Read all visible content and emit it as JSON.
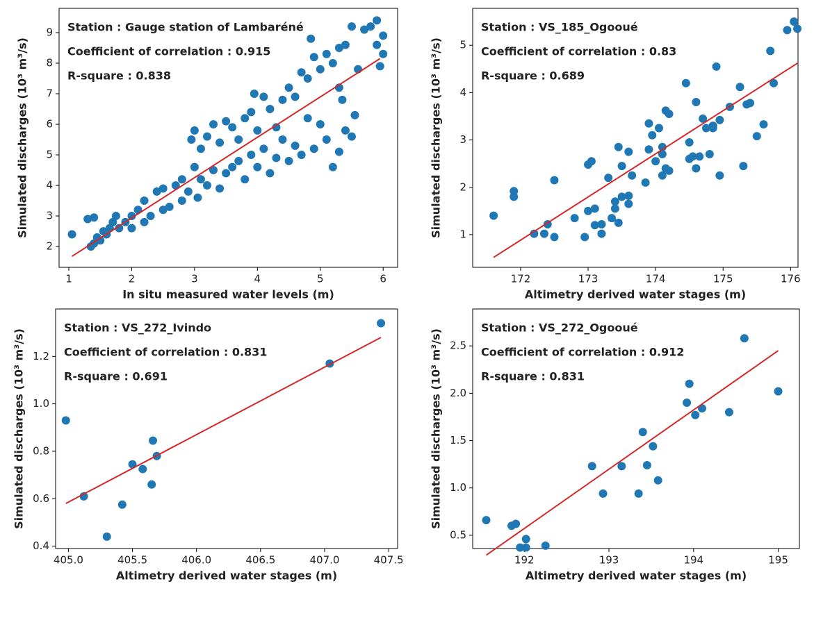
{
  "chart_data": [
    {
      "type": "scatter",
      "annotations": [
        "Station : Gauge station of Lambaréné",
        "Coefficient of correlation : 0.915",
        "R-square : 0.838"
      ],
      "xlabel": "In situ measured water levels (m)",
      "ylabel": "Simulated discharges (10³ m³/s)",
      "xlim": [
        0.845,
        6.23
      ],
      "ylim": [
        1.32,
        9.795
      ],
      "xticks": [
        1,
        2,
        3,
        4,
        5,
        6
      ],
      "yticks": [
        2,
        3,
        4,
        5,
        6,
        7,
        8,
        9
      ],
      "series": [
        {
          "color": "#1f77b4",
          "x": [
            1.05,
            1.3,
            1.4,
            1.35,
            1.4,
            1.45,
            1.5,
            1.55,
            1.6,
            1.65,
            1.7,
            1.75,
            1.8,
            1.9,
            2.0,
            2.0,
            2.1,
            2.2,
            2.2,
            2.3,
            2.4,
            2.5,
            2.5,
            2.6,
            2.7,
            2.8,
            2.8,
            2.9,
            2.95,
            3.0,
            3.0,
            3.05,
            3.1,
            3.1,
            3.2,
            3.2,
            3.3,
            3.3,
            3.4,
            3.4,
            3.5,
            3.5,
            3.6,
            3.6,
            3.7,
            3.7,
            3.8,
            3.8,
            3.9,
            3.9,
            3.95,
            4.0,
            4.0,
            4.1,
            4.1,
            4.2,
            4.2,
            4.3,
            4.3,
            4.4,
            4.4,
            4.5,
            4.5,
            4.6,
            4.6,
            4.7,
            4.7,
            4.8,
            4.8,
            4.85,
            4.9,
            4.9,
            5.0,
            5.0,
            5.1,
            5.1,
            5.2,
            5.2,
            5.3,
            5.3,
            5.4,
            5.4,
            5.5,
            5.5,
            5.55,
            5.6,
            5.7,
            5.8,
            5.9,
            5.9,
            6.0,
            6.0,
            5.95,
            5.35,
            5.3
          ],
          "values": [
            2.4,
            2.9,
            2.95,
            2.0,
            2.1,
            2.3,
            2.2,
            2.5,
            2.4,
            2.6,
            2.8,
            3.0,
            2.6,
            2.8,
            2.6,
            3.0,
            3.2,
            2.8,
            3.5,
            3.0,
            3.8,
            3.2,
            3.9,
            3.3,
            4.0,
            3.5,
            4.2,
            3.8,
            5.5,
            4.6,
            5.8,
            3.6,
            5.2,
            4.2,
            5.6,
            4.0,
            6.0,
            4.5,
            5.4,
            3.9,
            6.1,
            4.4,
            5.9,
            4.6,
            5.5,
            4.8,
            6.2,
            4.2,
            6.4,
            5.0,
            7.0,
            5.8,
            4.6,
            6.9,
            5.2,
            6.5,
            4.4,
            5.9,
            4.9,
            6.8,
            5.5,
            7.2,
            4.8,
            6.9,
            5.3,
            7.7,
            5.0,
            7.5,
            6.2,
            8.8,
            8.2,
            5.2,
            7.8,
            6.0,
            8.3,
            5.5,
            8.0,
            4.6,
            8.5,
            5.1,
            8.6,
            5.8,
            9.2,
            5.6,
            6.3,
            7.8,
            9.1,
            9.2,
            9.4,
            8.6,
            8.9,
            8.3,
            7.9,
            6.8,
            7.2
          ]
        }
      ],
      "fit_line": {
        "color": "#d62728",
        "x": [
          1.05,
          5.95
        ],
        "values": [
          1.68,
          8.15
        ]
      }
    },
    {
      "type": "scatter",
      "annotations": [
        "Station : VS_185_Ogooué",
        "Coefficient of correlation : 0.83",
        "R-square : 0.689"
      ],
      "xlabel": "Altimetry derived water stages (m)",
      "ylabel": "Simulated discharges (10³ m³/s)",
      "xlim": [
        171.29,
        176.11
      ],
      "ylim": [
        0.31,
        5.78
      ],
      "xticks": [
        172,
        173,
        174,
        175,
        176
      ],
      "yticks": [
        1,
        2,
        3,
        4,
        5
      ],
      "series": [
        {
          "color": "#1f77b4",
          "x": [
            171.6,
            171.9,
            171.9,
            172.2,
            172.35,
            172.4,
            172.5,
            172.5,
            172.8,
            172.95,
            173.0,
            173.0,
            173.05,
            173.1,
            173.1,
            173.2,
            173.2,
            173.3,
            173.35,
            173.4,
            173.4,
            173.45,
            173.45,
            173.5,
            173.5,
            173.6,
            173.6,
            173.6,
            173.65,
            173.85,
            173.9,
            173.9,
            173.95,
            174.0,
            174.05,
            174.1,
            174.1,
            174.1,
            174.15,
            174.15,
            174.2,
            174.2,
            174.45,
            174.5,
            174.5,
            174.55,
            174.6,
            174.6,
            174.65,
            174.7,
            174.75,
            174.8,
            174.85,
            174.85,
            174.9,
            174.95,
            174.95,
            175.1,
            175.25,
            175.3,
            175.35,
            175.4,
            175.5,
            175.6,
            175.7,
            175.75,
            175.95,
            176.05,
            176.1
          ],
          "values": [
            1.4,
            1.8,
            1.92,
            1.02,
            1.02,
            1.22,
            0.95,
            2.15,
            1.35,
            0.95,
            1.5,
            2.48,
            2.55,
            1.55,
            1.2,
            1.22,
            1.02,
            2.2,
            1.35,
            1.55,
            1.7,
            2.85,
            1.25,
            2.45,
            1.8,
            2.75,
            1.65,
            1.82,
            2.25,
            2.1,
            2.8,
            3.35,
            3.1,
            2.55,
            3.25,
            2.25,
            2.85,
            2.7,
            3.62,
            2.4,
            3.55,
            2.35,
            4.2,
            2.6,
            2.95,
            2.65,
            3.8,
            2.4,
            2.65,
            3.45,
            3.25,
            2.7,
            3.3,
            3.25,
            4.55,
            2.25,
            3.42,
            3.7,
            4.12,
            2.45,
            3.75,
            3.78,
            3.08,
            3.33,
            4.88,
            4.2,
            5.32,
            5.5,
            5.35
          ]
        }
      ],
      "fit_line": {
        "color": "#d62728",
        "x": [
          171.6,
          176.1
        ],
        "values": [
          0.52,
          4.62
        ]
      }
    },
    {
      "type": "scatter",
      "annotations": [
        "Station : VS_272_Ivindo",
        "Coefficient of correlation : 0.831",
        "R-square : 0.691"
      ],
      "xlabel": "Altimetry derived water stages (m)",
      "ylabel": "Simulated discharges (10³ m³/s)",
      "xlim": [
        404.9,
        407.57
      ],
      "ylim": [
        0.39,
        1.4
      ],
      "xticks": [
        {
          "value": 405,
          "label": "405.0"
        },
        405.5,
        {
          "value": 406,
          "label": "406.0"
        },
        406.5,
        {
          "value": 407,
          "label": "407.0"
        },
        407.5
      ],
      "yticks": [
        0.4,
        0.6,
        0.8,
        {
          "value": 1,
          "label": "1.0"
        },
        1.2
      ],
      "series": [
        {
          "color": "#1f77b4",
          "x": [
            404.98,
            405.12,
            405.3,
            405.42,
            405.5,
            405.58,
            405.65,
            405.66,
            405.69,
            407.04,
            407.44
          ],
          "values": [
            0.93,
            0.61,
            0.44,
            0.575,
            0.745,
            0.725,
            0.66,
            0.845,
            0.78,
            1.17,
            1.34
          ]
        }
      ],
      "fit_line": {
        "color": "#d62728",
        "x": [
          404.98,
          407.44
        ],
        "values": [
          0.58,
          1.28
        ]
      }
    },
    {
      "type": "scatter",
      "annotations": [
        "Station : VS_272_Ogooué",
        "Coefficient of correlation : 0.912",
        "R-square : 0.831"
      ],
      "xlabel": "Altimetry derived water stages (m)",
      "ylabel": "Simulated discharges (10³ m³/s)",
      "xlim": [
        191.39,
        195.25
      ],
      "ylim": [
        0.36,
        2.89
      ],
      "xticks": [
        192,
        193,
        194,
        195
      ],
      "yticks": [
        0.5,
        {
          "value": 1,
          "label": "1.0"
        },
        1.5,
        {
          "value": 2,
          "label": "2.0"
        },
        2.5
      ],
      "series": [
        {
          "color": "#1f77b4",
          "x": [
            191.55,
            191.85,
            191.9,
            191.95,
            192.02,
            192.02,
            192.25,
            192.8,
            192.93,
            193.15,
            193.35,
            193.4,
            193.45,
            193.52,
            193.58,
            193.92,
            193.95,
            194.02,
            194.1,
            194.42,
            194.6,
            195.0
          ],
          "values": [
            0.66,
            0.6,
            0.62,
            0.37,
            0.37,
            0.46,
            0.39,
            1.23,
            0.94,
            1.23,
            0.94,
            1.59,
            1.24,
            1.44,
            1.08,
            1.9,
            2.1,
            1.77,
            1.84,
            1.8,
            2.58,
            2.02
          ]
        }
      ],
      "fit_line": {
        "color": "#d62728",
        "x": [
          191.55,
          195.0
        ],
        "values": [
          0.29,
          2.45
        ]
      }
    }
  ]
}
